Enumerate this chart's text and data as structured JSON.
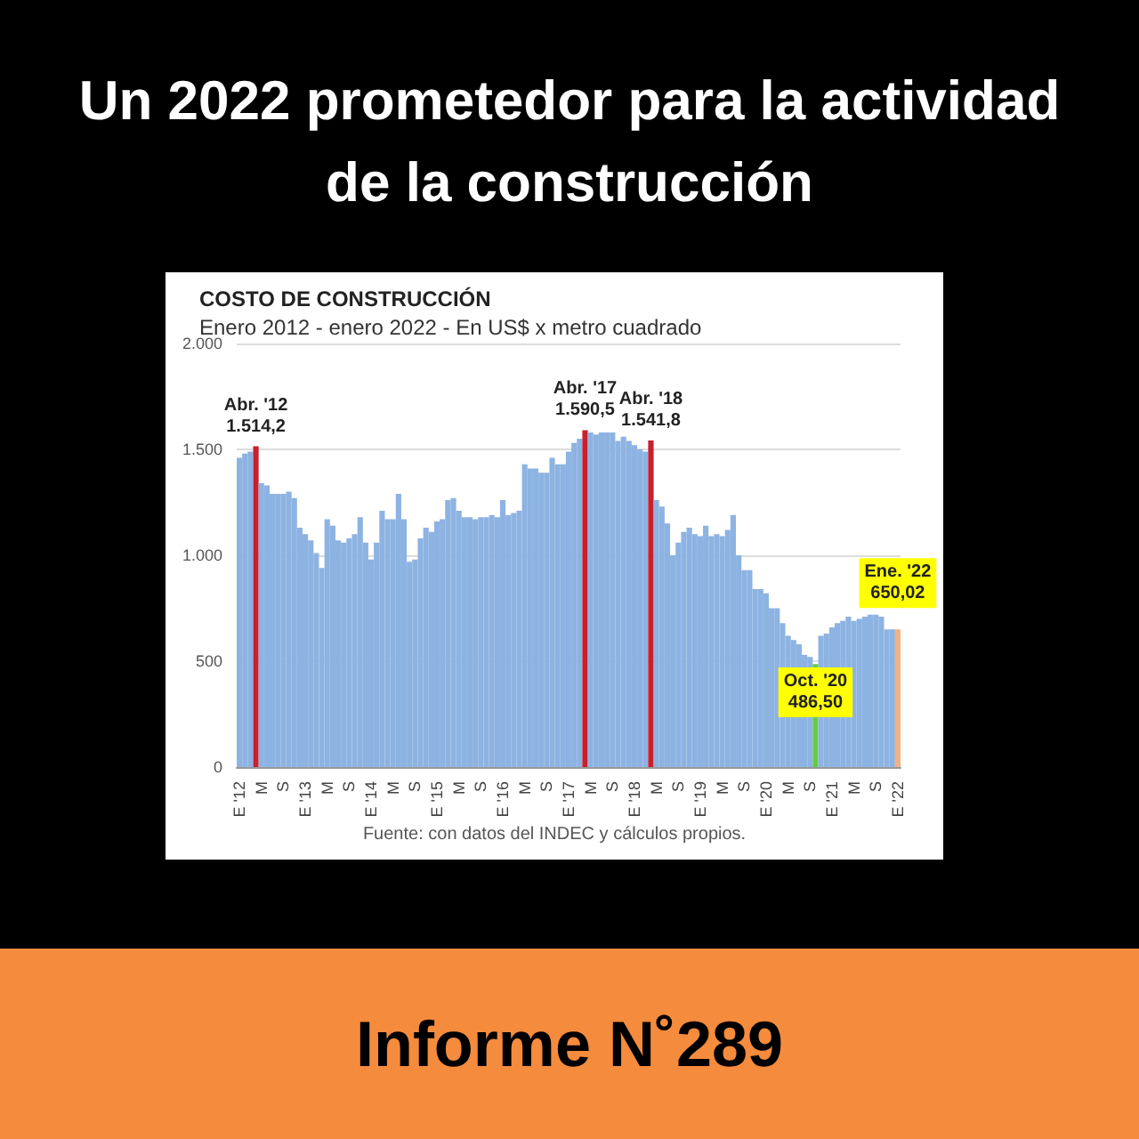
{
  "chart_data": {
    "type": "bar",
    "title": "Un 2022 prometedor para la actividad de la construcción",
    "subtitle": "COSTO DE CONSTRUCCIÓN",
    "annotations": [
      "Enero 2012 - enero 2022 - En US$ x metro cuadrado",
      "Fuente: con datos del INDEC y cálculos propios.",
      "Informe N˚289",
      {
        "text": "Abr. '12",
        "y": 1514.2
      },
      {
        "text": "Abr. '17",
        "y": 1590.5
      },
      {
        "text": "Abr. '18",
        "y": 1541.8
      },
      {
        "text": "Oct. '20",
        "y": 486.5
      },
      {
        "text": "Ene. '22",
        "x": "E '22",
        "y": 650.02
      }
    ],
    "categories": [
      "E '12",
      null,
      null,
      null,
      "M",
      null,
      null,
      null,
      "S",
      null,
      null,
      null,
      "E '13",
      null,
      null,
      null,
      "M",
      null,
      null,
      null,
      "S",
      null,
      null,
      null,
      "E '14",
      null,
      null,
      null,
      "M",
      null,
      null,
      null,
      "S",
      null,
      null,
      null,
      "E '15",
      null,
      null,
      null,
      "M",
      null,
      null,
      null,
      "S",
      null,
      null,
      null,
      "E '16",
      null,
      null,
      null,
      "M",
      null,
      null,
      null,
      "S",
      null,
      null,
      null,
      "E '17",
      null,
      null,
      null,
      "M",
      null,
      null,
      null,
      "S",
      null,
      null,
      null,
      "E '18",
      null,
      null,
      null,
      "M",
      null,
      null,
      null,
      "S",
      null,
      null,
      null,
      "E '19",
      null,
      null,
      null,
      "M",
      null,
      null,
      null,
      "S",
      null,
      null,
      null,
      "E '20",
      null,
      null,
      null,
      "M",
      null,
      null,
      null,
      "S",
      null,
      null,
      null,
      "E '21",
      null,
      null,
      null,
      "M",
      null,
      null,
      null,
      "S",
      null,
      null,
      null,
      "E '22"
    ],
    "values": [
      1460,
      1480,
      1490,
      1514.2,
      1340,
      1330,
      1290,
      1290,
      1290,
      1300,
      1270,
      1130,
      1100,
      1070,
      1010,
      940,
      1170,
      1140,
      1070,
      1060,
      1080,
      1100,
      1180,
      1060,
      980,
      1060,
      1210,
      1170,
      1170,
      1290,
      1170,
      970,
      980,
      1080,
      1130,
      1110,
      1160,
      1170,
      1260,
      1270,
      1210,
      1180,
      1180,
      1170,
      1180,
      1180,
      1190,
      1180,
      1260,
      1190,
      1200,
      1210,
      1430,
      1410,
      1410,
      1390,
      1390,
      1460,
      1430,
      1430,
      1490,
      1530,
      1550,
      1590.5,
      1580,
      1570,
      1580,
      1580,
      1580,
      1540,
      1560,
      1540,
      1520,
      1500,
      1490,
      1541.8,
      1260,
      1230,
      1150,
      1000,
      1060,
      1110,
      1130,
      1100,
      1090,
      1140,
      1090,
      1100,
      1090,
      1120,
      1190,
      1000,
      930,
      930,
      840,
      840,
      820,
      750,
      750,
      680,
      620,
      600,
      580,
      530,
      520,
      486.5,
      620,
      630,
      660,
      680,
      690,
      710,
      690,
      700,
      710,
      720,
      720,
      710,
      650,
      650,
      650.02
    ],
    "colors": [
      "#8db3e2",
      "#8db3e2",
      "#8db3e2",
      "#c8202c",
      "#8db3e2",
      "#8db3e2",
      "#8db3e2",
      "#8db3e2",
      "#8db3e2",
      "#8db3e2",
      "#8db3e2",
      "#8db3e2",
      "#8db3e2",
      "#8db3e2",
      "#8db3e2",
      "#8db3e2",
      "#8db3e2",
      "#8db3e2",
      "#8db3e2",
      "#8db3e2",
      "#8db3e2",
      "#8db3e2",
      "#8db3e2",
      "#8db3e2",
      "#8db3e2",
      "#8db3e2",
      "#8db3e2",
      "#8db3e2",
      "#8db3e2",
      "#8db3e2",
      "#8db3e2",
      "#8db3e2",
      "#8db3e2",
      "#8db3e2",
      "#8db3e2",
      "#8db3e2",
      "#8db3e2",
      "#8db3e2",
      "#8db3e2",
      "#8db3e2",
      "#8db3e2",
      "#8db3e2",
      "#8db3e2",
      "#8db3e2",
      "#8db3e2",
      "#8db3e2",
      "#8db3e2",
      "#8db3e2",
      "#8db3e2",
      "#8db3e2",
      "#8db3e2",
      "#8db3e2",
      "#8db3e2",
      "#8db3e2",
      "#8db3e2",
      "#8db3e2",
      "#8db3e2",
      "#8db3e2",
      "#8db3e2",
      "#8db3e2",
      "#8db3e2",
      "#8db3e2",
      "#8db3e2",
      "#c8202c",
      "#8db3e2",
      "#8db3e2",
      "#8db3e2",
      "#8db3e2",
      "#8db3e2",
      "#8db3e2",
      "#8db3e2",
      "#8db3e2",
      "#8db3e2",
      "#8db3e2",
      "#8db3e2",
      "#c8202c",
      "#8db3e2",
      "#8db3e2",
      "#8db3e2",
      "#8db3e2",
      "#8db3e2",
      "#8db3e2",
      "#8db3e2",
      "#8db3e2",
      "#8db3e2",
      "#8db3e2",
      "#8db3e2",
      "#8db3e2",
      "#8db3e2",
      "#8db3e2",
      "#8db3e2",
      "#8db3e2",
      "#8db3e2",
      "#8db3e2",
      "#8db3e2",
      "#8db3e2",
      "#8db3e2",
      "#8db3e2",
      "#8db3e2",
      "#8db3e2",
      "#8db3e2",
      "#8db3e2",
      "#8db3e2",
      "#8db3e2",
      "#8db3e2",
      "#66cc44",
      "#8db3e2",
      "#8db3e2",
      "#8db3e2",
      "#8db3e2",
      "#8db3e2",
      "#8db3e2",
      "#8db3e2",
      "#8db3e2",
      "#8db3e2",
      "#8db3e2",
      "#8db3e2",
      "#8db3e2",
      "#8db3e2",
      "#8db3e2",
      "#f4b183"
    ],
    "value_labels": [
      null,
      null,
      null,
      "1.514,2",
      null,
      null,
      null,
      null,
      null,
      null,
      null,
      null,
      null,
      null,
      null,
      null,
      null,
      null,
      null,
      null,
      null,
      null,
      null,
      null,
      null,
      null,
      null,
      null,
      null,
      null,
      null,
      null,
      null,
      null,
      null,
      null,
      null,
      null,
      null,
      null,
      null,
      null,
      null,
      null,
      null,
      null,
      null,
      null,
      null,
      null,
      null,
      null,
      null,
      null,
      null,
      null,
      null,
      null,
      null,
      null,
      null,
      null,
      null,
      "1.590,5",
      null,
      null,
      null,
      null,
      null,
      null,
      null,
      null,
      null,
      null,
      null,
      "1.541,8",
      null,
      null,
      null,
      null,
      null,
      null,
      null,
      null,
      null,
      null,
      null,
      null,
      null,
      null,
      null,
      null,
      null,
      null,
      null,
      null,
      null,
      null,
      null,
      null,
      null,
      null,
      null,
      null,
      null,
      "486,50",
      null,
      null,
      null,
      null,
      null,
      null,
      null,
      null,
      null,
      null,
      null,
      null,
      null,
      null,
      "650,02"
    ],
    "ylim": [
      0,
      2000
    ],
    "yticks": [
      0,
      500,
      {
        "value": 1000,
        "label": "1.000"
      },
      {
        "value": 1500,
        "label": "1.500"
      },
      {
        "value": 2000,
        "label": "2.000"
      }
    ],
    "grid": "y"
  }
}
